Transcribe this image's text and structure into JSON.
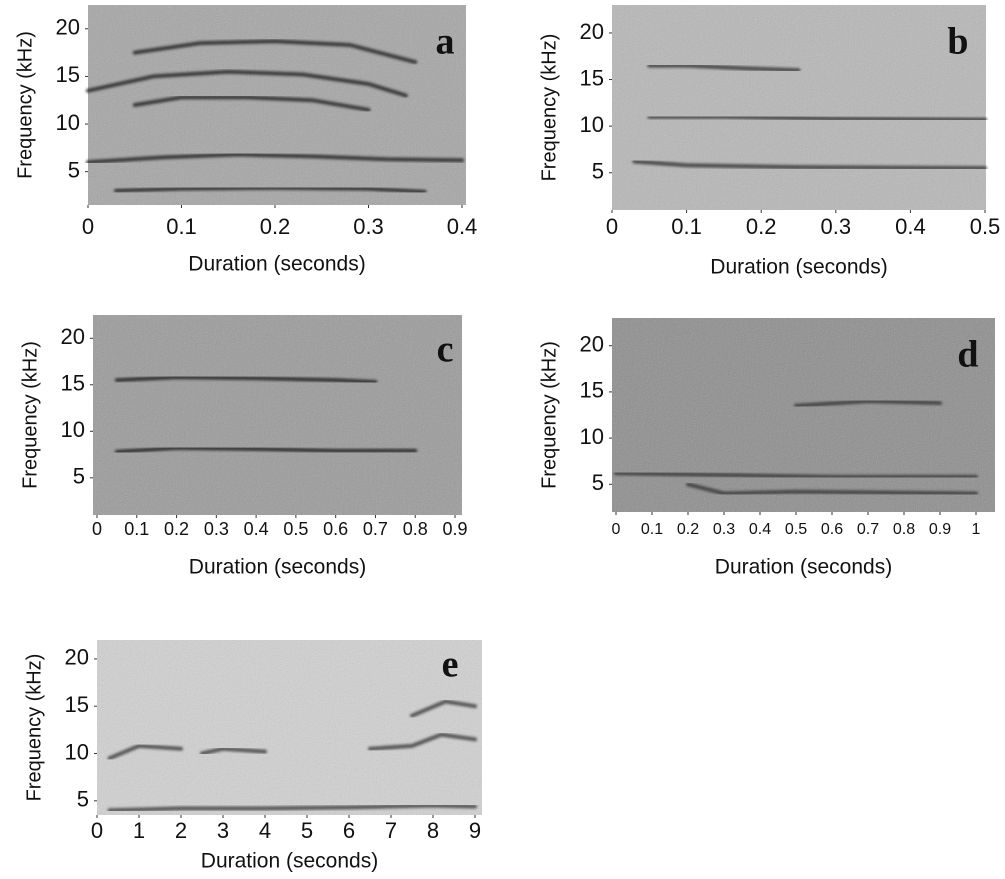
{
  "chart_data": [
    {
      "type": "spectrogram",
      "panel": "a",
      "xlabel": "Duration (seconds)",
      "ylabel": "Frequency (kHz)",
      "xlim": [
        0,
        0.4
      ],
      "ylim": [
        1.5,
        22.5
      ],
      "xticks": [
        0,
        0.1,
        0.2,
        0.3,
        0.4
      ],
      "yticks": [
        5,
        10,
        15,
        20
      ],
      "color": "#2a2a2a",
      "traces": [
        {
          "x": [
            0.05,
            0.12,
            0.2,
            0.28,
            0.35
          ],
          "y": [
            17.5,
            18.5,
            18.7,
            18.3,
            16.5
          ]
        },
        {
          "x": [
            0,
            0.07,
            0.15,
            0.23,
            0.3,
            0.34
          ],
          "y": [
            13.5,
            15,
            15.5,
            15.2,
            14.2,
            13
          ]
        },
        {
          "x": [
            0.05,
            0.1,
            0.17,
            0.24,
            0.3
          ],
          "y": [
            12,
            12.8,
            12.8,
            12.5,
            11.5
          ]
        },
        {
          "x": [
            0,
            0.08,
            0.16,
            0.24,
            0.32,
            0.4
          ],
          "y": [
            6,
            6.5,
            6.8,
            6.6,
            6.3,
            6.2
          ]
        },
        {
          "x": [
            0.03,
            0.1,
            0.2,
            0.3,
            0.36
          ],
          "y": [
            3,
            3.2,
            3.3,
            3.2,
            2.9
          ]
        }
      ]
    },
    {
      "type": "spectrogram",
      "panel": "b",
      "xlabel": "Duration (seconds)",
      "ylabel": "Frequency (kHz)",
      "xlim": [
        0,
        0.5
      ],
      "ylim": [
        1,
        23
      ],
      "xticks": [
        0,
        0.1,
        0.2,
        0.3,
        0.4,
        0.5
      ],
      "yticks": [
        5,
        10,
        15,
        20
      ],
      "color": "#3a3a3a",
      "traces": [
        {
          "x": [
            0.05,
            0.1,
            0.18,
            0.25
          ],
          "y": [
            16.5,
            16.5,
            16.2,
            16
          ]
        },
        {
          "x": [
            0.05,
            0.15,
            0.3,
            0.5
          ],
          "y": [
            11,
            11,
            10.8,
            10.7
          ]
        },
        {
          "x": [
            0.03,
            0.1,
            0.25,
            0.5
          ],
          "y": [
            6.2,
            5.8,
            5.6,
            5.5
          ]
        }
      ]
    },
    {
      "type": "spectrogram",
      "panel": "c",
      "xlabel": "Duration (seconds)",
      "ylabel": "Frequency (kHz)",
      "xlim": [
        0,
        0.9
      ],
      "ylim": [
        1,
        22.5
      ],
      "xticks": [
        0,
        0.1,
        0.2,
        0.3,
        0.4,
        0.5,
        0.6,
        0.7,
        0.8,
        0.9
      ],
      "yticks": [
        5,
        10,
        15,
        20
      ],
      "color": "#252525",
      "traces": [
        {
          "x": [
            0.05,
            0.2,
            0.4,
            0.6,
            0.7
          ],
          "y": [
            15.5,
            15.8,
            15.7,
            15.5,
            15.3
          ]
        },
        {
          "x": [
            0.05,
            0.2,
            0.4,
            0.6,
            0.8
          ],
          "y": [
            7.8,
            8.2,
            8.1,
            7.9,
            7.9
          ]
        }
      ]
    },
    {
      "type": "spectrogram",
      "panel": "d",
      "xlabel": "Duration (seconds)",
      "ylabel": "Frequency (kHz)",
      "xlim": [
        0,
        1
      ],
      "ylim": [
        2,
        23
      ],
      "xticks": [
        0,
        0.1,
        0.2,
        0.3,
        0.4,
        0.5,
        0.6,
        0.7,
        0.8,
        0.9,
        1
      ],
      "yticks": [
        5,
        10,
        15,
        20
      ],
      "color": "#3a3a3a",
      "traces": [
        {
          "x": [
            0,
            0.3,
            0.6,
            1
          ],
          "y": [
            6.2,
            6,
            5.8,
            5.8
          ]
        },
        {
          "x": [
            0.2,
            0.3,
            0.5,
            1
          ],
          "y": [
            5,
            4,
            4.2,
            4
          ]
        },
        {
          "x": [
            0.5,
            0.7,
            0.9
          ],
          "y": [
            13.5,
            14,
            13.8
          ]
        }
      ]
    },
    {
      "type": "spectrogram",
      "panel": "e",
      "xlabel": "Duration (seconds)",
      "ylabel": "Frequency (kHz)",
      "xlim": [
        0,
        9
      ],
      "ylim": [
        3.5,
        22
      ],
      "xticks": [
        0,
        1,
        2,
        3,
        4,
        5,
        6,
        7,
        8,
        9
      ],
      "yticks": [
        5,
        10,
        15,
        20
      ],
      "color": "#444444",
      "traces": [
        {
          "x": [
            0.3,
            2,
            4,
            6,
            8,
            9
          ],
          "y": [
            4,
            4.2,
            4.2,
            4.3,
            4.5,
            4.4
          ]
        },
        {
          "x": [
            0.3,
            1,
            2
          ],
          "y": [
            9.5,
            10.8,
            10.5
          ]
        },
        {
          "x": [
            2.5,
            3,
            4
          ],
          "y": [
            10,
            10.5,
            10.2
          ]
        },
        {
          "x": [
            6.5,
            7.5,
            8.2,
            9
          ],
          "y": [
            10.5,
            10.8,
            12,
            11.5
          ]
        },
        {
          "x": [
            7.5,
            8.3,
            9
          ],
          "y": [
            14,
            15.5,
            15
          ]
        }
      ]
    }
  ]
}
